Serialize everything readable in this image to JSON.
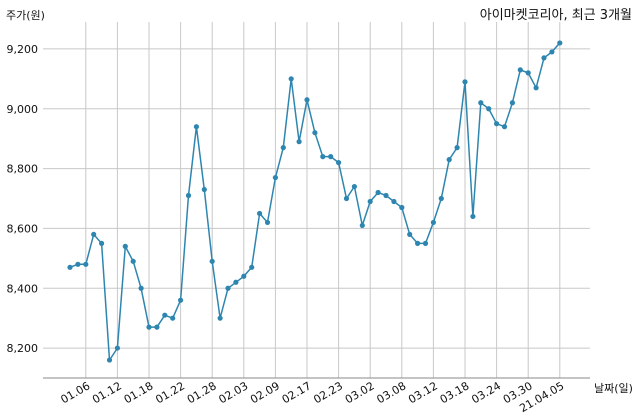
{
  "chart_data": {
    "type": "line",
    "title": "아이마켓코리아, 최근 3개월",
    "ylabel": "주가(원)",
    "xlabel": "날짜(일)",
    "ylim": [
      8100,
      9290
    ],
    "y_ticks": [
      8200,
      8400,
      8600,
      8800,
      9000,
      9200
    ],
    "y_tick_labels": [
      "8,200",
      "8,400",
      "8,600",
      "8,800",
      "9,000",
      "9,200"
    ],
    "x_tick_labels": [
      "01.06",
      "01.12",
      "01.18",
      "01.22",
      "01.28",
      "02.03",
      "02.09",
      "02.17",
      "02.23",
      "03.02",
      "03.08",
      "03.12",
      "03.18",
      "03.24",
      "03.30",
      "21.04.05"
    ],
    "grid": true,
    "color": "#2e86b0",
    "series": [
      {
        "values": [
          8470,
          8480,
          8480,
          8580,
          8550,
          8160,
          8200,
          8540,
          8490,
          8400,
          8270,
          8270,
          8310,
          8300,
          8360,
          8710,
          8940,
          8730,
          8490,
          8300,
          8400,
          8420,
          8440,
          8470,
          8650,
          8620,
          8770,
          8870,
          9100,
          8890,
          9030,
          8920,
          8840,
          8840,
          8820,
          8700,
          8740,
          8610,
          8690,
          8720,
          8710,
          8690,
          8670,
          8580,
          8550,
          8550,
          8620,
          8700,
          8830,
          8870,
          9090,
          8640,
          9020,
          9000,
          8950,
          8940,
          9020,
          9130,
          9120,
          9070,
          9170,
          9190,
          9220
        ]
      }
    ]
  }
}
